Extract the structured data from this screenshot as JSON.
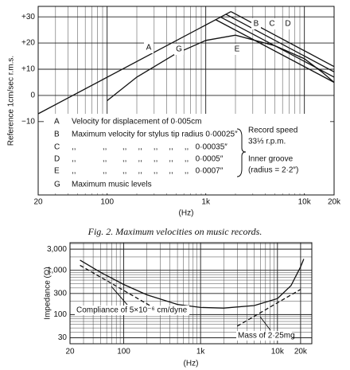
{
  "chart_data": [
    {
      "type": "line",
      "xlog": true,
      "minor_grid": true,
      "y_label": "Reference 1cm/sec r.m.s.",
      "x_label": "(Hz)",
      "xlim": [
        20,
        20000
      ],
      "ylim": [
        -38,
        34
      ],
      "xticks": [
        20,
        100,
        {
          "value": 1000,
          "label": "1k"
        },
        {
          "value": 10000,
          "label": "10k"
        },
        {
          "value": 20000,
          "label": "20k"
        }
      ],
      "yticks": [
        {
          "value": 30,
          "label": "+30"
        },
        {
          "value": 20,
          "label": "+20"
        },
        {
          "value": 10,
          "label": "+10"
        },
        0,
        {
          "value": -10,
          "label": "−10"
        }
      ],
      "series": [
        {
          "name": "A",
          "color": "#111",
          "x": [
            20,
            1800
          ],
          "values": [
            -7,
            32
          ]
        },
        {
          "name": "B",
          "color": "#111",
          "x": [
            1800,
            20000
          ],
          "values": [
            32,
            11
          ]
        },
        {
          "name": "C",
          "color": "#111",
          "x": [
            1600,
            20000
          ],
          "values": [
            31,
            9
          ]
        },
        {
          "name": "D",
          "color": "#111",
          "x": [
            1400,
            20000
          ],
          "values": [
            30,
            7
          ]
        },
        {
          "name": "E",
          "color": "#111",
          "x": [
            1250,
            20000
          ],
          "values": [
            29,
            5
          ]
        },
        {
          "name": "G",
          "color": "#111",
          "x": [
            100,
            200,
            500,
            1000,
            2000,
            5000,
            10000,
            15000,
            20000
          ],
          "values": [
            -2,
            7,
            16,
            21,
            23,
            19,
            14,
            9,
            5
          ]
        }
      ],
      "legend": [
        {
          "key": "A",
          "text": "Velocity for displacement of 0·005cm"
        },
        {
          "key": "B",
          "text": "Maximum velocity for stylus tip radius 0·00025″"
        },
        {
          "key": "C",
          "text": ",,            ,,       ,,     ,,     ,,     ,,     ,,   0·00035″"
        },
        {
          "key": "D",
          "text": ",,            ,,       ,,     ,,     ,,     ,,     ,,   0·0005″"
        },
        {
          "key": "E",
          "text": ",,            ,,       ,,     ,,     ,,     ,,     ,,   0·0007″"
        },
        {
          "key": "G",
          "text": "Maximum music levels"
        }
      ],
      "notes": [
        "Record speed",
        "33⅓ r.p.m.",
        "Inner groove",
        "(radius = 2·2″)"
      ]
    },
    {
      "type": "line",
      "xlog": true,
      "ylog": true,
      "minor_grid": true,
      "y_label": "Impedance (Ω)",
      "x_label": "(Hz)",
      "xlim": [
        20,
        28000
      ],
      "ylim": [
        22,
        4200
      ],
      "xticks": [
        20,
        100,
        {
          "value": 1000,
          "label": "1k"
        },
        {
          "value": 10000,
          "label": "10k"
        },
        {
          "value": 20000,
          "label": "20k"
        }
      ],
      "yticks": [
        {
          "value": 3000,
          "label": "3,000"
        },
        {
          "value": 1000,
          "label": "1,000"
        },
        300,
        100,
        30
      ],
      "series": [
        {
          "color": "#111",
          "x": [
            27,
            50,
            100,
            200,
            500,
            1000,
            2000,
            5000,
            10000,
            15000,
            20000,
            22000
          ],
          "values": [
            1700,
            900,
            480,
            280,
            170,
            145,
            140,
            160,
            230,
            450,
            1200,
            1800
          ]
        },
        {
          "color": "#111",
          "dash": true,
          "x": [
            27,
            300
          ],
          "values": [
            1300,
            117
          ]
        },
        {
          "color": "#111",
          "dash": true,
          "x": [
            3000,
            20000
          ],
          "values": [
            55,
            370
          ]
        }
      ],
      "annotations": [
        "Compliance of 5×10⁻⁶ cm/dyne",
        "Mass of 2·25mg"
      ]
    }
  ],
  "caption": "Fig. 2.  Maximum  velocities  on  music  records."
}
